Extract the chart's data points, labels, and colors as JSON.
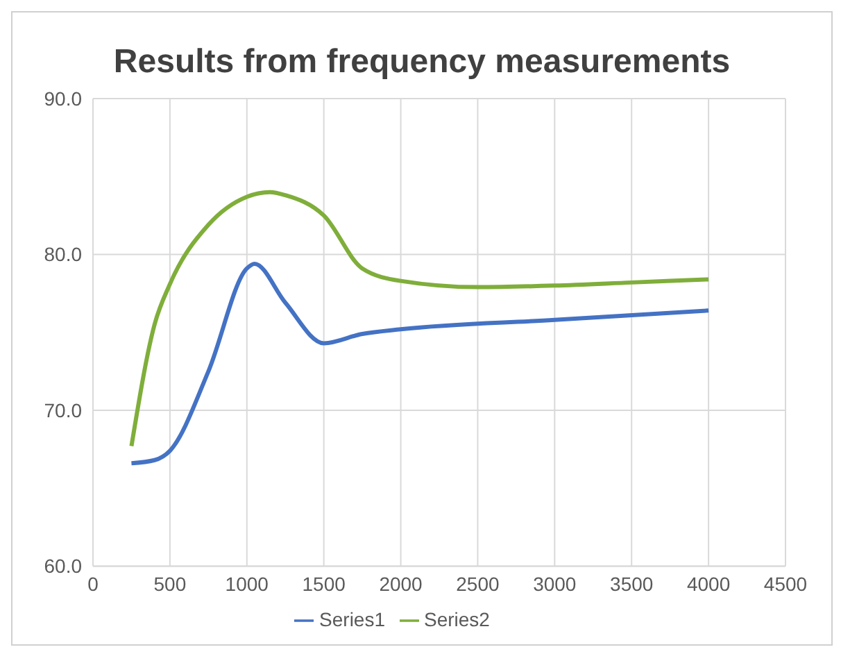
{
  "chart_data": {
    "type": "line",
    "title": "Results from frequency measurements",
    "xlim": [
      0,
      4500
    ],
    "xticks": [
      0,
      500,
      1000,
      1500,
      2000,
      2500,
      3000,
      3500,
      4000,
      4500
    ],
    "ylim": [
      60,
      90
    ],
    "yticks": [
      {
        "value": 60,
        "label": "60.0"
      },
      {
        "value": 70,
        "label": "70.0"
      },
      {
        "value": 80,
        "label": "80.0"
      },
      {
        "value": 90,
        "label": "90.0"
      }
    ],
    "grid": true,
    "legend": "bottom",
    "marker": "none",
    "series": [
      {
        "name": "Series1",
        "color": "#4472c4",
        "x": [
          250,
          400,
          500,
          750,
          1000,
          1050,
          1250,
          1500,
          1750,
          2000,
          3000,
          4000
        ],
        "values": [
          66.6,
          66.8,
          67.4,
          72.5,
          79.1,
          79.4,
          76.9,
          74.3,
          74.9,
          75.2,
          75.8,
          76.4
        ]
      },
      {
        "name": "Series2",
        "color": "#7fae3a",
        "x": [
          250,
          400,
          500,
          750,
          1000,
          1150,
          1250,
          1500,
          1750,
          2000,
          2500,
          3000,
          3500,
          4000
        ],
        "values": [
          67.7,
          75.5,
          78.1,
          81.9,
          83.7,
          84.0,
          83.8,
          82.5,
          79.1,
          78.3,
          77.9,
          78.0,
          78.2,
          78.4
        ]
      }
    ]
  }
}
